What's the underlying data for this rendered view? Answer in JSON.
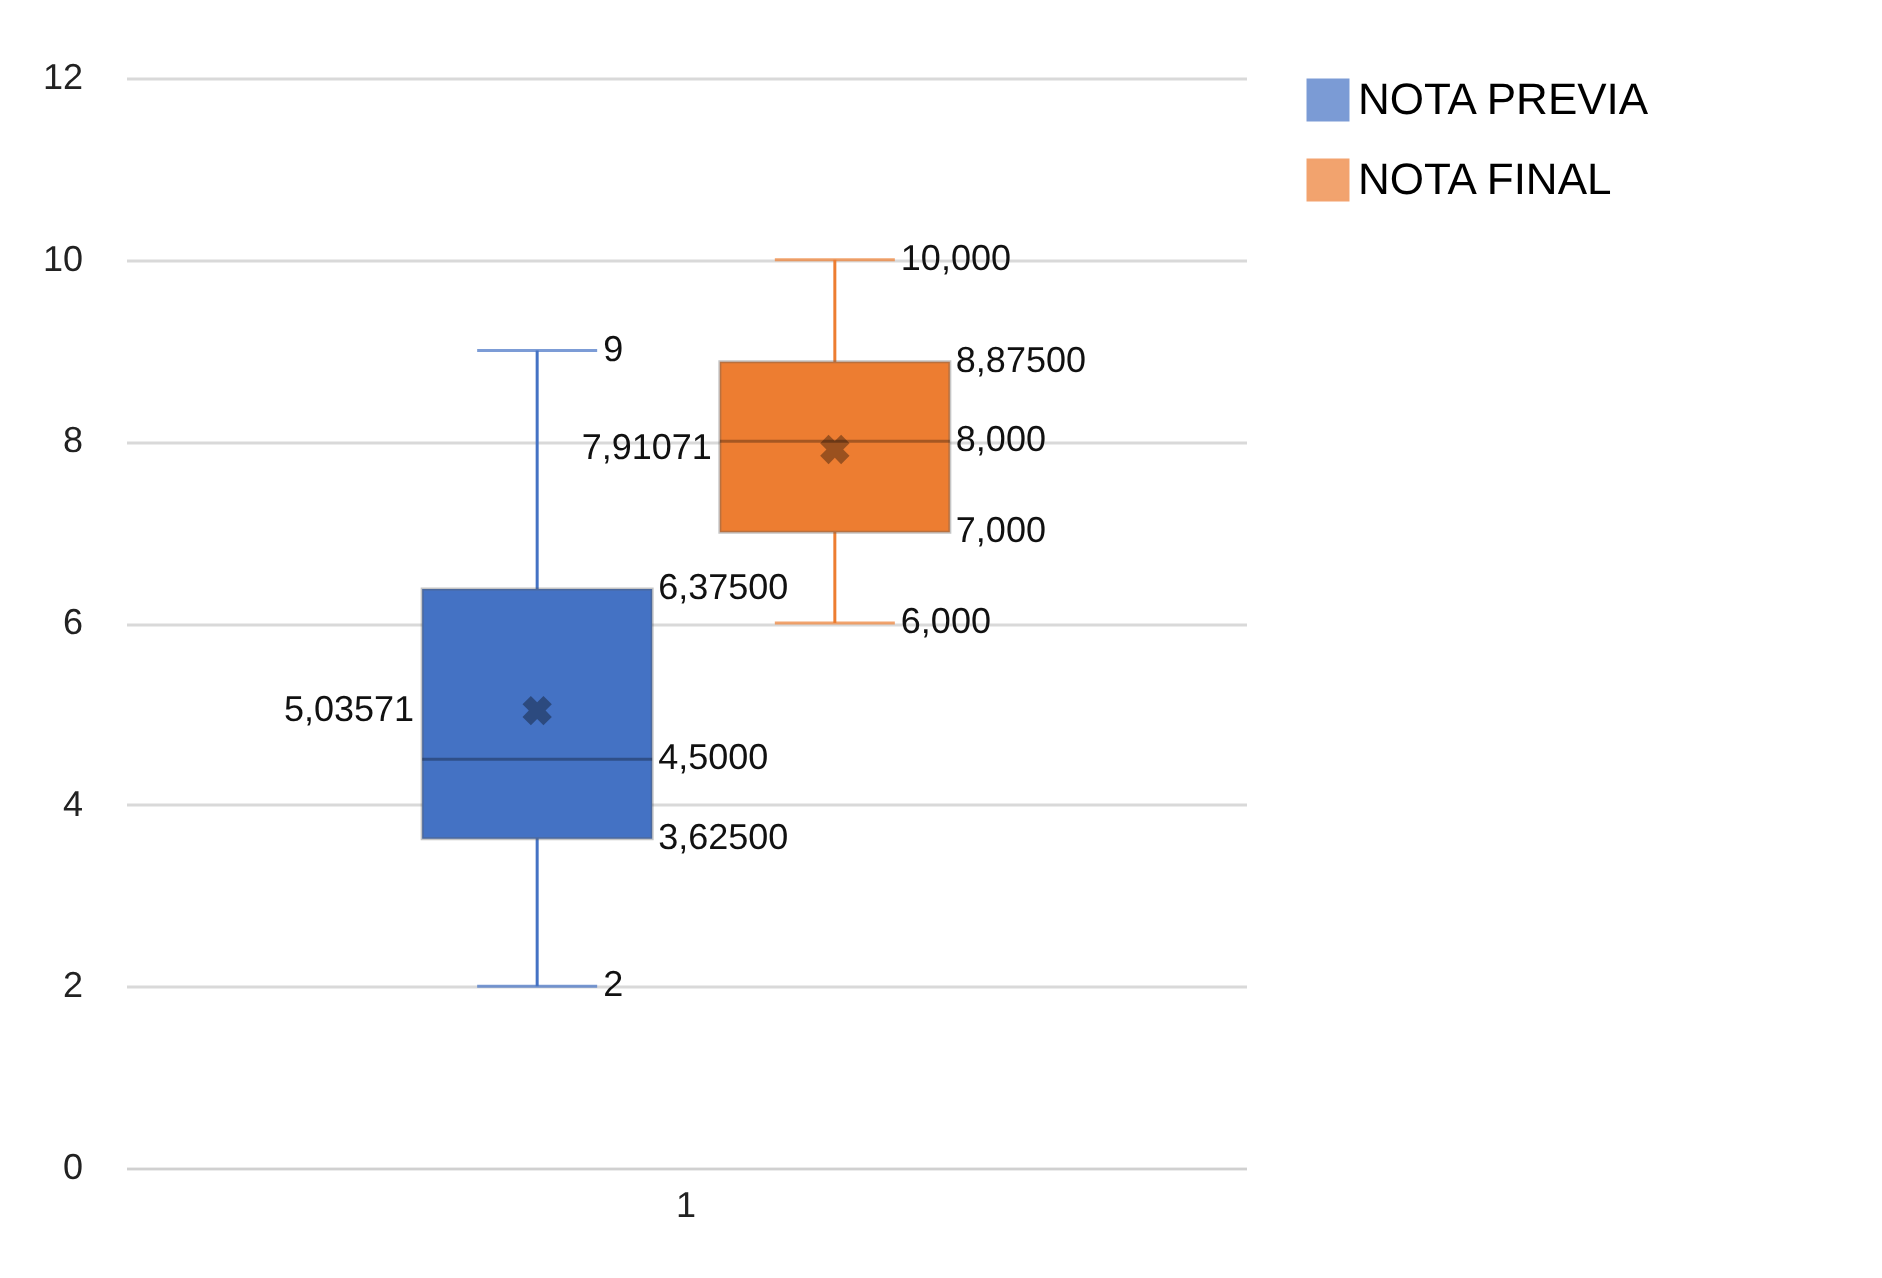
{
  "chart_data": {
    "type": "box",
    "categories": [
      "1"
    ],
    "ylim": [
      0,
      12
    ],
    "yticks": [
      0,
      2,
      4,
      6,
      8,
      10,
      12
    ],
    "grid": "y",
    "legend": "right",
    "series": [
      {
        "name": "NOTA PREVIA",
        "color": "#4472c4",
        "boxes": [
          {
            "low": 2,
            "q1": 3.625,
            "median": 4.5,
            "q3": 6.375,
            "high": 9,
            "mean": 5.03571
          }
        ]
      },
      {
        "name": "NOTA FINAL",
        "color": "#ed7d31",
        "boxes": [
          {
            "low": 6,
            "q1": 7,
            "median": 8,
            "q3": 8.875,
            "high": 10,
            "mean": 7.91071
          }
        ]
      }
    ],
    "annotations": [
      "9",
      "6,37500",
      "5,03571",
      "4,5000",
      "3,62500",
      "2",
      "10,000",
      "8,87500",
      "7,91071",
      "8,000",
      "7,000",
      "6,000"
    ]
  }
}
